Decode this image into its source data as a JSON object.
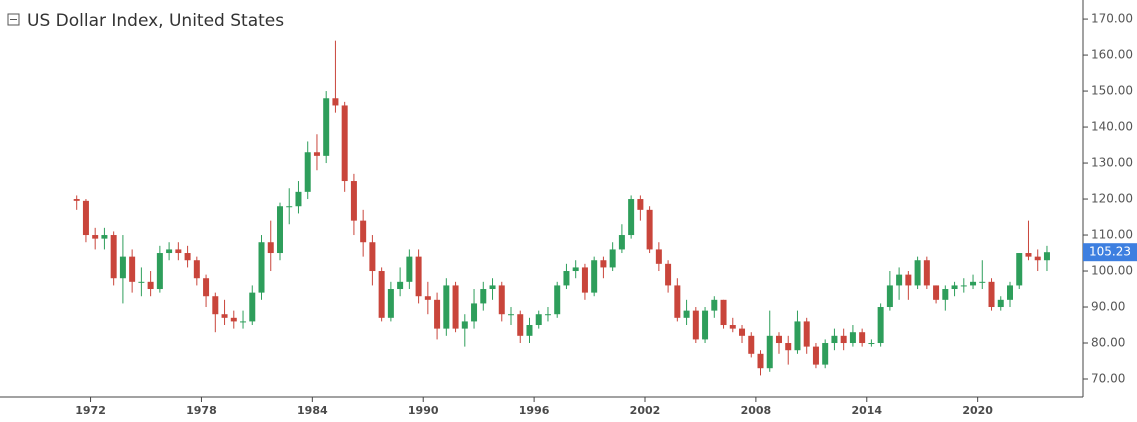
{
  "chart_data": {
    "type": "candlestick",
    "title": "US Dollar Index, United States",
    "up_color": "#2e9e5b",
    "down_color": "#c9453b",
    "last_value": 105.23,
    "last_color": "#3d7fe0",
    "xlim": [
      1967.1,
      2025.7
    ],
    "xticks": [
      1972,
      1978,
      1984,
      1990,
      1996,
      2002,
      2008,
      2014,
      2020
    ],
    "ylim": [
      65,
      175.3
    ],
    "yticks": [
      {
        "value": 70,
        "label": "70.00"
      },
      {
        "value": 80,
        "label": "80.00"
      },
      {
        "value": 90,
        "label": "90.00"
      },
      {
        "value": 100,
        "label": "100.00"
      },
      {
        "value": 110,
        "label": "110.00"
      },
      {
        "value": 120,
        "label": "120.00"
      },
      {
        "value": 130,
        "label": "130.00"
      },
      {
        "value": 140,
        "label": "140.00"
      },
      {
        "value": 150,
        "label": "150.00"
      },
      {
        "value": 160,
        "label": "160.00"
      },
      {
        "value": 170,
        "label": "170.00"
      }
    ],
    "x": [
      1971.25,
      1971.75,
      1972.25,
      1972.75,
      1973.25,
      1973.75,
      1974.25,
      1974.75,
      1975.25,
      1975.75,
      1976.25,
      1976.75,
      1977.25,
      1977.75,
      1978.25,
      1978.75,
      1979.25,
      1979.75,
      1980.25,
      1980.75,
      1981.25,
      1981.75,
      1982.25,
      1982.75,
      1983.25,
      1983.75,
      1984.25,
      1984.75,
      1985.25,
      1985.75,
      1986.25,
      1986.75,
      1987.25,
      1987.75,
      1988.25,
      1988.75,
      1989.25,
      1989.75,
      1990.25,
      1990.75,
      1991.25,
      1991.75,
      1992.25,
      1992.75,
      1993.25,
      1993.75,
      1994.25,
      1994.75,
      1995.25,
      1995.75,
      1996.25,
      1996.75,
      1997.25,
      1997.75,
      1998.25,
      1998.75,
      1999.25,
      1999.75,
      2000.25,
      2000.75,
      2001.25,
      2001.75,
      2002.25,
      2002.75,
      2003.25,
      2003.75,
      2004.25,
      2004.75,
      2005.25,
      2005.75,
      2006.25,
      2006.75,
      2007.25,
      2007.75,
      2008.25,
      2008.75,
      2009.25,
      2009.75,
      2010.25,
      2010.75,
      2011.25,
      2011.75,
      2012.25,
      2012.75,
      2013.25,
      2013.75,
      2014.25,
      2014.75,
      2015.25,
      2015.75,
      2016.25,
      2016.75,
      2017.25,
      2017.75,
      2018.25,
      2018.75,
      2019.25,
      2019.75,
      2020.25,
      2020.75,
      2021.25,
      2021.75,
      2022.25,
      2022.75,
      2023.25,
      2023.75
    ],
    "open": [
      120,
      119.5,
      110,
      109,
      110,
      98,
      104,
      97,
      97,
      95,
      105,
      106,
      105,
      103,
      98,
      93,
      88,
      87,
      86,
      86,
      94,
      108,
      105,
      118,
      118,
      122,
      133,
      132,
      148,
      146,
      125,
      114,
      108,
      100,
      87,
      95,
      97,
      104,
      93,
      92,
      84,
      96,
      84,
      86,
      91,
      95,
      96,
      88,
      88,
      82,
      85,
      88,
      88,
      96,
      100,
      101,
      94,
      103,
      101,
      106,
      110,
      120,
      117,
      106,
      102,
      96,
      87,
      89,
      81,
      89,
      92,
      85,
      84,
      82,
      77,
      73,
      82,
      80,
      78,
      86,
      79,
      74,
      80,
      82,
      80,
      83,
      80,
      80,
      90,
      96,
      99,
      96,
      103,
      96,
      92,
      95,
      96,
      96,
      97,
      97,
      90,
      92,
      96,
      105,
      104,
      103
    ],
    "high": [
      121,
      120,
      112,
      112,
      111,
      110,
      106,
      101,
      100,
      107,
      108,
      108,
      107,
      104,
      99,
      94,
      92,
      89,
      89,
      96,
      110,
      114,
      119,
      123,
      125,
      136,
      138,
      150,
      164,
      147,
      127,
      117,
      110,
      101,
      97,
      101,
      106,
      106,
      97,
      94,
      98,
      97,
      88,
      95,
      97,
      98,
      97,
      90,
      89,
      87,
      89,
      90,
      97,
      102,
      103,
      102,
      104,
      104,
      108,
      113,
      121,
      121,
      118,
      108,
      103,
      98,
      92,
      90,
      90,
      93,
      92,
      87,
      85,
      83,
      78,
      89,
      83,
      82,
      89,
      87,
      80,
      81,
      84,
      84,
      85,
      84,
      81,
      91,
      100,
      101,
      100,
      104,
      104,
      96,
      96,
      97,
      98,
      99,
      103,
      98,
      93,
      97,
      105,
      114,
      106,
      107
    ],
    "low": [
      117,
      108,
      106,
      106,
      96,
      91,
      94,
      93,
      93,
      94,
      103,
      103,
      101,
      96,
      90,
      83,
      85,
      84,
      84,
      85,
      92,
      100,
      103,
      113,
      116,
      120,
      128,
      130,
      144,
      122,
      110,
      104,
      96,
      86,
      86,
      93,
      95,
      91,
      88,
      81,
      82,
      83,
      79,
      84,
      89,
      92,
      86,
      85,
      80,
      80,
      84,
      86,
      87,
      95,
      98,
      92,
      93,
      98,
      100,
      105,
      109,
      114,
      105,
      100,
      94,
      86,
      85,
      80,
      80,
      87,
      84,
      83,
      80,
      76,
      71,
      72,
      77,
      74,
      77,
      77,
      73,
      73,
      78,
      78,
      79,
      79,
      79,
      79,
      89,
      92,
      92,
      95,
      95,
      91,
      89,
      93,
      94,
      95,
      95,
      89,
      89,
      90,
      95,
      103,
      100,
      100
    ],
    "close": [
      119.5,
      110,
      109,
      110,
      98,
      104,
      97,
      97,
      95,
      105,
      106,
      105,
      103,
      98,
      93,
      88,
      87,
      86,
      86,
      94,
      108,
      105,
      118,
      118,
      122,
      133,
      132,
      148,
      146,
      125,
      114,
      108,
      100,
      87,
      95,
      97,
      104,
      93,
      92,
      84,
      96,
      84,
      86,
      91,
      95,
      96,
      88,
      88,
      82,
      85,
      88,
      88,
      96,
      100,
      101,
      94,
      103,
      101,
      106,
      110,
      120,
      117,
      106,
      102,
      96,
      87,
      89,
      81,
      89,
      92,
      85,
      84,
      82,
      77,
      73,
      82,
      80,
      78,
      86,
      79,
      74,
      80,
      82,
      80,
      83,
      80,
      80,
      90,
      96,
      99,
      96,
      103,
      96,
      92,
      95,
      96,
      96,
      97,
      97,
      90,
      92,
      96,
      105,
      104,
      103,
      105.23
    ]
  }
}
